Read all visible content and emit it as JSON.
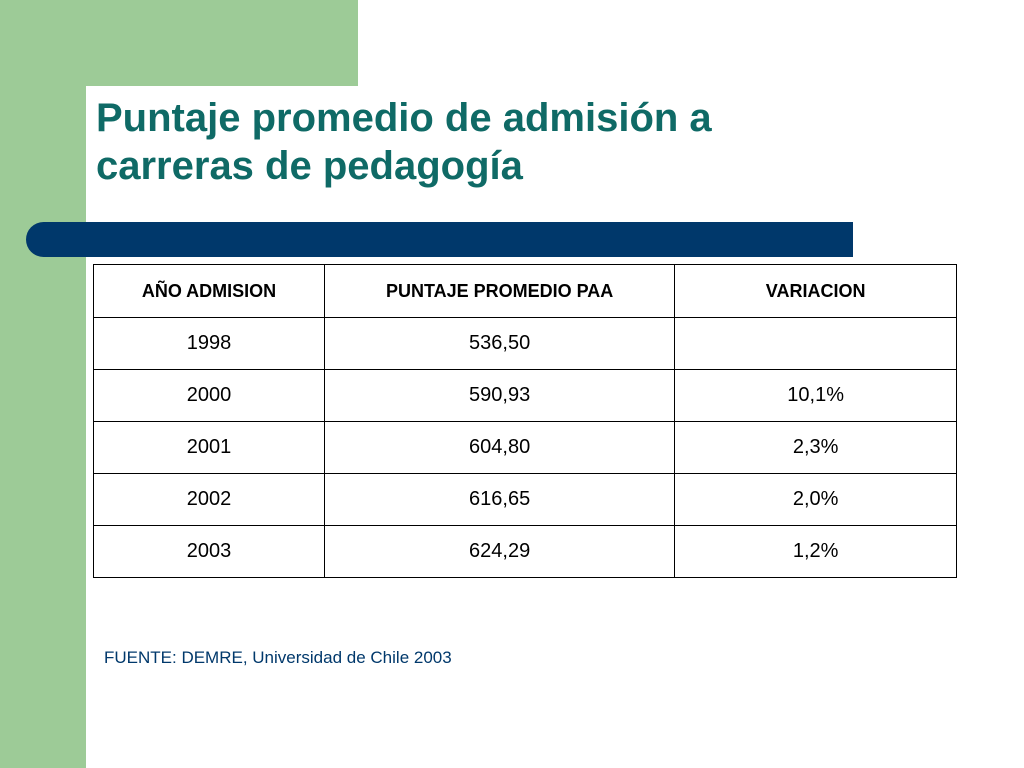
{
  "slide": {
    "title_line1": "Puntaje promedio de admisión a",
    "title_line2": "carreras de pedagogía",
    "source": "FUENTE: DEMRE, Universidad de Chile 2003"
  },
  "table": {
    "headers": [
      "AÑO ADMISION",
      "PUNTAJE PROMEDIO PAA",
      "VARIACION"
    ],
    "rows": [
      [
        "1998",
        "536,50",
        ""
      ],
      [
        "2000",
        "590,93",
        "10,1%"
      ],
      [
        "2001",
        "604,80",
        "2,3%"
      ],
      [
        "2002",
        "616,65",
        "2,0%"
      ],
      [
        "2003",
        "624,29",
        "1,2%"
      ]
    ]
  },
  "colors": {
    "green_accent": "#9dcb97",
    "title_teal": "#0f6a66",
    "navy_bar": "#00386b"
  }
}
